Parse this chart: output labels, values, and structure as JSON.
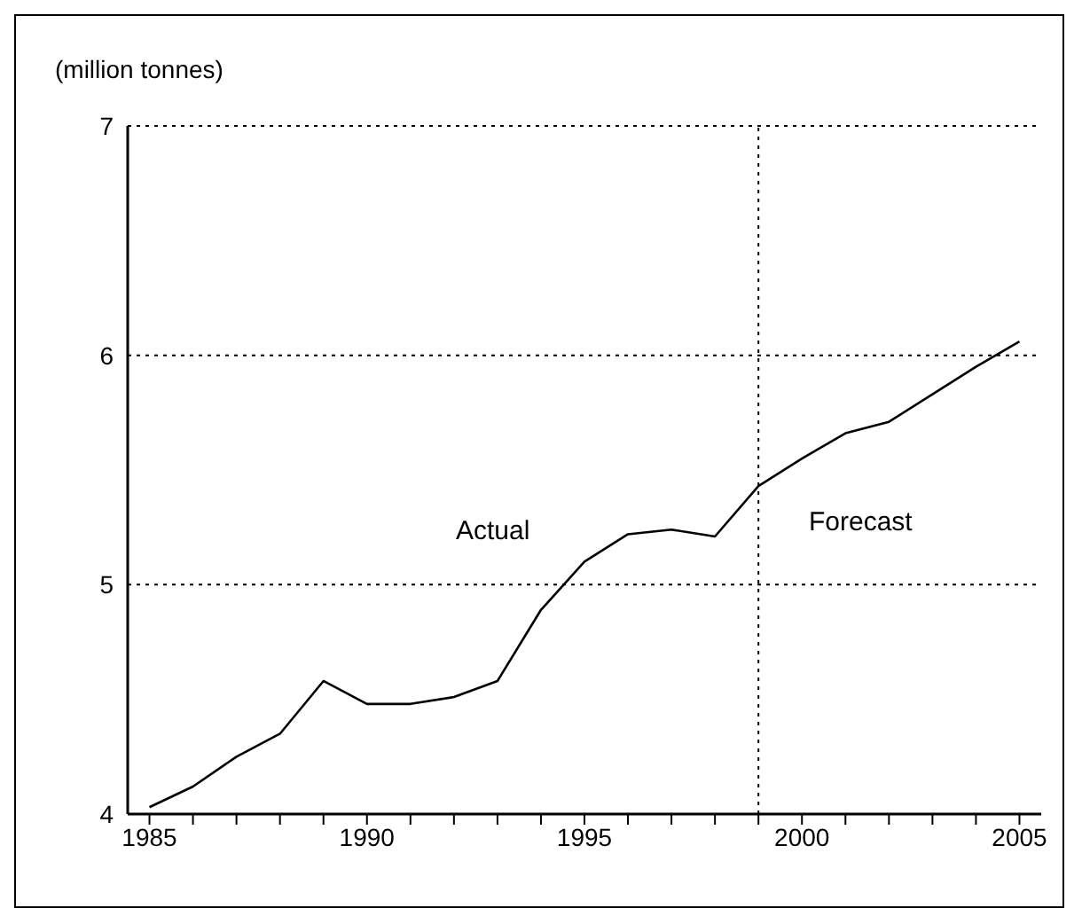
{
  "chart_data": {
    "type": "line",
    "ylabel": "(million tonnes)",
    "x": [
      1985,
      1986,
      1987,
      1988,
      1989,
      1990,
      1991,
      1992,
      1993,
      1994,
      1995,
      1996,
      1997,
      1998,
      1999,
      2000,
      2001,
      2002,
      2003,
      2004,
      2005
    ],
    "series": [
      {
        "color": "#000000",
        "values": [
          4.03,
          4.12,
          4.25,
          4.35,
          4.58,
          4.48,
          4.48,
          4.51,
          4.58,
          4.89,
          5.1,
          5.22,
          5.24,
          5.21,
          5.43,
          5.55,
          5.66,
          5.71,
          5.83,
          5.95,
          6.06
        ]
      }
    ],
    "xlim": [
      1984.5,
      2005.5
    ],
    "xticks": [
      1985,
      {
        "value": 1986,
        "label": null
      },
      {
        "value": 1987,
        "label": null
      },
      {
        "value": 1988,
        "label": null
      },
      {
        "value": 1989,
        "label": null
      },
      1990,
      {
        "value": 1991,
        "label": null
      },
      {
        "value": 1992,
        "label": null
      },
      {
        "value": 1993,
        "label": null
      },
      {
        "value": 1994,
        "label": null
      },
      1995,
      {
        "value": 1996,
        "label": null
      },
      {
        "value": 1997,
        "label": null
      },
      {
        "value": 1998,
        "label": null
      },
      {
        "value": 1999,
        "label": null
      },
      2000,
      {
        "value": 2001,
        "label": null
      },
      {
        "value": 2002,
        "label": null
      },
      {
        "value": 2003,
        "label": null
      },
      {
        "value": 2004,
        "label": null
      },
      2005
    ],
    "ylim": [
      4,
      7
    ],
    "yticks": [
      4,
      5,
      6,
      7
    ],
    "grid": "y",
    "marker": "none",
    "line_style": "solid",
    "ref_lines": [
      {
        "axis": "x",
        "value": 1999,
        "color": "#000000",
        "line_style": "dotted"
      }
    ],
    "annotations": [
      "Actual",
      "Forecast"
    ]
  }
}
